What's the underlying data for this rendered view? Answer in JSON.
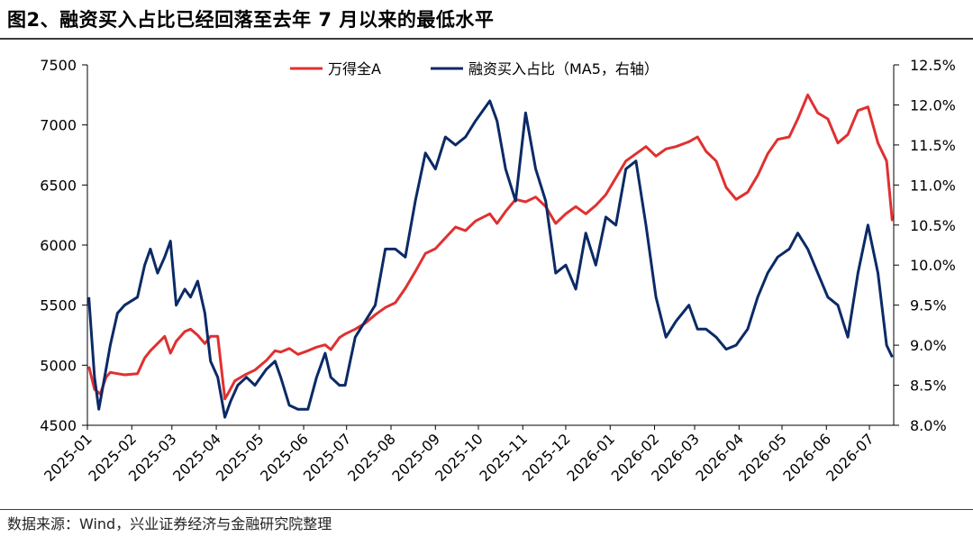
{
  "title": "图2、融资买入占比已经回落至去年 7 月以来的最低水平",
  "source": "数据来源：Wind，兴业证券经济与金融研究院整理",
  "colors": {
    "index": "#e03030",
    "margin": "#0b2a66",
    "axis": "#000000"
  },
  "chart_data": {
    "type": "line",
    "title": "图2、融资买入占比已经回落至去年 7 月以来的最低水平",
    "x_tick_labels": [
      "2025-01",
      "2025-02",
      "2025-03",
      "2025-04",
      "2025-05",
      "2025-06",
      "2025-07",
      "2025-08",
      "2025-09",
      "2025-10",
      "2025-11",
      "2025-12",
      "2026-01",
      "2026-02",
      "2026-03",
      "2026-04",
      "2026-05",
      "2026-06",
      "2026-07"
    ],
    "y_left": {
      "min": 4500,
      "max": 7500,
      "ticks": [
        "7500",
        "7000",
        "6500",
        "6000",
        "5500",
        "5000",
        "4500"
      ]
    },
    "y_right": {
      "min": 8.0,
      "max": 12.5,
      "ticks": [
        "12.5%",
        "12.0%",
        "11.5%",
        "11.0%",
        "10.5%",
        "10.0%",
        "9.5%",
        "9.0%",
        "8.5%",
        "8.0%"
      ]
    },
    "legend_position": "top-center",
    "series": [
      {
        "name": "万得全A",
        "axis": "left",
        "points": [
          [
            "2025-01-02",
            4990
          ],
          [
            "2025-01-06",
            4800
          ],
          [
            "2025-01-10",
            4760
          ],
          [
            "2025-01-14",
            4900
          ],
          [
            "2025-01-17",
            4940
          ],
          [
            "2025-01-22",
            4930
          ],
          [
            "2025-01-27",
            4920
          ],
          [
            "2025-02-05",
            4930
          ],
          [
            "2025-02-10",
            5060
          ],
          [
            "2025-02-14",
            5120
          ],
          [
            "2025-02-19",
            5180
          ],
          [
            "2025-02-24",
            5240
          ],
          [
            "2025-02-28",
            5100
          ],
          [
            "2025-03-04",
            5200
          ],
          [
            "2025-03-10",
            5280
          ],
          [
            "2025-03-14",
            5300
          ],
          [
            "2025-03-19",
            5250
          ],
          [
            "2025-03-24",
            5180
          ],
          [
            "2025-03-28",
            5240
          ],
          [
            "2025-04-02",
            5240
          ],
          [
            "2025-04-07",
            4720
          ],
          [
            "2025-04-09",
            4760
          ],
          [
            "2025-04-14",
            4870
          ],
          [
            "2025-04-21",
            4920
          ],
          [
            "2025-04-28",
            4960
          ],
          [
            "2025-05-06",
            5040
          ],
          [
            "2025-05-12",
            5120
          ],
          [
            "2025-05-16",
            5110
          ],
          [
            "2025-05-22",
            5140
          ],
          [
            "2025-05-28",
            5090
          ],
          [
            "2025-06-04",
            5120
          ],
          [
            "2025-06-10",
            5150
          ],
          [
            "2025-06-16",
            5170
          ],
          [
            "2025-06-20",
            5130
          ],
          [
            "2025-06-26",
            5230
          ],
          [
            "2025-06-30",
            5260
          ],
          [
            "2025-07-07",
            5300
          ],
          [
            "2025-07-14",
            5350
          ],
          [
            "2025-07-21",
            5420
          ],
          [
            "2025-07-28",
            5480
          ],
          [
            "2025-08-04",
            5520
          ],
          [
            "2025-08-11",
            5640
          ],
          [
            "2025-08-18",
            5780
          ],
          [
            "2025-08-25",
            5930
          ],
          [
            "2025-09-01",
            5970
          ],
          [
            "2025-09-08",
            6060
          ],
          [
            "2025-09-15",
            6150
          ],
          [
            "2025-09-22",
            6120
          ],
          [
            "2025-09-29",
            6200
          ],
          [
            "2025-10-09",
            6260
          ],
          [
            "2025-10-14",
            6180
          ],
          [
            "2025-10-20",
            6280
          ],
          [
            "2025-10-27",
            6380
          ],
          [
            "2025-11-03",
            6360
          ],
          [
            "2025-11-10",
            6400
          ],
          [
            "2025-11-17",
            6320
          ],
          [
            "2025-11-24",
            6180
          ],
          [
            "2025-12-01",
            6260
          ],
          [
            "2025-12-08",
            6320
          ],
          [
            "2025-12-15",
            6260
          ],
          [
            "2025-12-22",
            6330
          ],
          [
            "2025-12-29",
            6420
          ],
          [
            "2026-01-05",
            6560
          ],
          [
            "2026-01-12",
            6700
          ],
          [
            "2026-01-19",
            6760
          ],
          [
            "2026-01-26",
            6820
          ],
          [
            "2026-02-02",
            6740
          ],
          [
            "2026-02-09",
            6800
          ],
          [
            "2026-02-16",
            6820
          ],
          [
            "2026-02-25",
            6860
          ],
          [
            "2026-03-03",
            6900
          ],
          [
            "2026-03-09",
            6780
          ],
          [
            "2026-03-16",
            6700
          ],
          [
            "2026-03-23",
            6480
          ],
          [
            "2026-03-30",
            6380
          ],
          [
            "2026-04-07",
            6440
          ],
          [
            "2026-04-14",
            6580
          ],
          [
            "2026-04-21",
            6760
          ],
          [
            "2026-04-28",
            6880
          ],
          [
            "2026-05-06",
            6900
          ],
          [
            "2026-05-12",
            7050
          ],
          [
            "2026-05-19",
            7250
          ],
          [
            "2026-05-26",
            7100
          ],
          [
            "2026-06-02",
            7050
          ],
          [
            "2026-06-09",
            6850
          ],
          [
            "2026-06-16",
            6920
          ],
          [
            "2026-06-23",
            7120
          ],
          [
            "2026-06-30",
            7150
          ],
          [
            "2026-07-07",
            6850
          ],
          [
            "2026-07-13",
            6700
          ],
          [
            "2026-07-17",
            6200
          ]
        ]
      },
      {
        "name": "融资买入占比（MA5，右轴）",
        "axis": "right",
        "points": [
          [
            "2025-01-02",
            9.6
          ],
          [
            "2025-01-06",
            8.6
          ],
          [
            "2025-01-09",
            8.2
          ],
          [
            "2025-01-13",
            8.6
          ],
          [
            "2025-01-17",
            9.0
          ],
          [
            "2025-01-22",
            9.4
          ],
          [
            "2025-01-27",
            9.5
          ],
          [
            "2025-02-05",
            9.6
          ],
          [
            "2025-02-10",
            10.0
          ],
          [
            "2025-02-14",
            10.2
          ],
          [
            "2025-02-19",
            9.9
          ],
          [
            "2025-02-24",
            10.1
          ],
          [
            "2025-02-28",
            10.3
          ],
          [
            "2025-03-04",
            9.5
          ],
          [
            "2025-03-10",
            9.7
          ],
          [
            "2025-03-14",
            9.6
          ],
          [
            "2025-03-19",
            9.8
          ],
          [
            "2025-03-24",
            9.4
          ],
          [
            "2025-03-28",
            8.8
          ],
          [
            "2025-04-02",
            8.6
          ],
          [
            "2025-04-07",
            8.1
          ],
          [
            "2025-04-11",
            8.3
          ],
          [
            "2025-04-16",
            8.5
          ],
          [
            "2025-04-22",
            8.6
          ],
          [
            "2025-04-28",
            8.5
          ],
          [
            "2025-05-06",
            8.7
          ],
          [
            "2025-05-12",
            8.8
          ],
          [
            "2025-05-16",
            8.6
          ],
          [
            "2025-05-22",
            8.25
          ],
          [
            "2025-05-28",
            8.2
          ],
          [
            "2025-06-04",
            8.2
          ],
          [
            "2025-06-10",
            8.6
          ],
          [
            "2025-06-16",
            8.9
          ],
          [
            "2025-06-20",
            8.6
          ],
          [
            "2025-06-26",
            8.5
          ],
          [
            "2025-06-30",
            8.5
          ],
          [
            "2025-07-07",
            9.1
          ],
          [
            "2025-07-14",
            9.3
          ],
          [
            "2025-07-21",
            9.5
          ],
          [
            "2025-07-28",
            10.2
          ],
          [
            "2025-08-04",
            10.2
          ],
          [
            "2025-08-11",
            10.1
          ],
          [
            "2025-08-18",
            10.8
          ],
          [
            "2025-08-25",
            11.4
          ],
          [
            "2025-09-01",
            11.2
          ],
          [
            "2025-09-08",
            11.6
          ],
          [
            "2025-09-15",
            11.5
          ],
          [
            "2025-09-22",
            11.6
          ],
          [
            "2025-09-29",
            11.8
          ],
          [
            "2025-10-09",
            12.05
          ],
          [
            "2025-10-14",
            11.8
          ],
          [
            "2025-10-20",
            11.2
          ],
          [
            "2025-10-27",
            10.8
          ],
          [
            "2025-11-03",
            11.9
          ],
          [
            "2025-11-10",
            11.2
          ],
          [
            "2025-11-17",
            10.8
          ],
          [
            "2025-11-24",
            9.9
          ],
          [
            "2025-12-01",
            10.0
          ],
          [
            "2025-12-08",
            9.7
          ],
          [
            "2025-12-15",
            10.4
          ],
          [
            "2025-12-22",
            10.0
          ],
          [
            "2025-12-29",
            10.6
          ],
          [
            "2026-01-05",
            10.5
          ],
          [
            "2026-01-12",
            11.2
          ],
          [
            "2026-01-19",
            11.3
          ],
          [
            "2026-01-26",
            10.5
          ],
          [
            "2026-02-02",
            9.6
          ],
          [
            "2026-02-09",
            9.1
          ],
          [
            "2026-02-16",
            9.3
          ],
          [
            "2026-02-25",
            9.5
          ],
          [
            "2026-03-03",
            9.2
          ],
          [
            "2026-03-09",
            9.2
          ],
          [
            "2026-03-16",
            9.1
          ],
          [
            "2026-03-23",
            8.95
          ],
          [
            "2026-03-30",
            9.0
          ],
          [
            "2026-04-07",
            9.2
          ],
          [
            "2026-04-14",
            9.6
          ],
          [
            "2026-04-21",
            9.9
          ],
          [
            "2026-04-28",
            10.1
          ],
          [
            "2026-05-06",
            10.2
          ],
          [
            "2026-05-12",
            10.4
          ],
          [
            "2026-05-19",
            10.2
          ],
          [
            "2026-05-26",
            9.9
          ],
          [
            "2026-06-02",
            9.6
          ],
          [
            "2026-06-09",
            9.5
          ],
          [
            "2026-06-16",
            9.1
          ],
          [
            "2026-06-23",
            9.9
          ],
          [
            "2026-06-30",
            10.5
          ],
          [
            "2026-07-07",
            9.9
          ],
          [
            "2026-07-13",
            9.0
          ],
          [
            "2026-07-17",
            8.85
          ]
        ]
      }
    ]
  }
}
